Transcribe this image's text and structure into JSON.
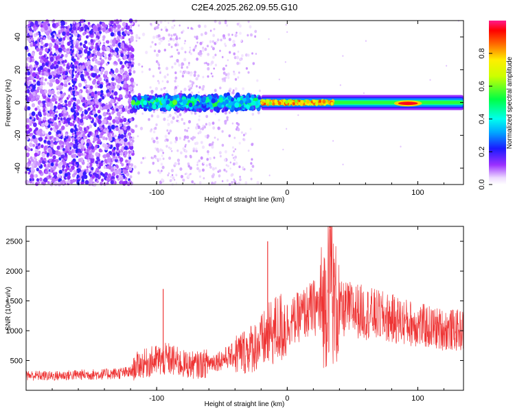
{
  "title": "C2E4.2025.262.09.55.G10",
  "chart_data": [
    {
      "type": "heatmap",
      "xlabel": "Height of straight line (km)",
      "ylabel": "Frequency (Hz)",
      "xlim": [
        -200,
        135
      ],
      "ylim": [
        -50,
        50
      ],
      "x_ticks": [
        -100,
        0,
        100
      ],
      "y_ticks": [
        -40,
        -20,
        0,
        20,
        40
      ],
      "colorbar": {
        "label": "Normalized spectral amplitude",
        "range": [
          0,
          1
        ],
        "ticks": [
          0.0,
          0.2,
          0.4,
          0.6,
          0.8
        ]
      },
      "features": [
        {
          "name": "broadband noise",
          "x_range": [
            -200,
            -118
          ],
          "freq_range": [
            -50,
            50
          ],
          "amplitude": 0.15
        },
        {
          "name": "scattered noise",
          "x_range": [
            -118,
            -20
          ],
          "freq_range": [
            -50,
            50
          ],
          "amplitude": 0.05
        },
        {
          "name": "signal band",
          "x_range": [
            -118,
            -20
          ],
          "freq_range": [
            -5,
            5
          ],
          "amplitude": 0.45
        },
        {
          "name": "signal band",
          "x_range": [
            -20,
            135
          ],
          "freq_range": [
            -3,
            3
          ],
          "amplitude": 0.55
        },
        {
          "name": "signal peak",
          "x_range": [
            85,
            100
          ],
          "freq_range": [
            -1.5,
            0.5
          ],
          "amplitude": 0.95
        }
      ]
    },
    {
      "type": "line",
      "xlabel": "Height of straight line (km)",
      "ylabel": "SNR (10 * v/v)",
      "xlim": [
        -200,
        135
      ],
      "ylim": [
        0,
        2750
      ],
      "x_ticks": [
        -100,
        0,
        100
      ],
      "y_ticks": [
        500,
        1000,
        1500,
        2000,
        2500
      ],
      "color": "#ee3333",
      "series": [
        {
          "name": "SNR",
          "x": [
            -200,
            -180,
            -160,
            -140,
            -120,
            -115,
            -100,
            -90,
            -80,
            -70,
            -60,
            -50,
            -40,
            -30,
            -20,
            -15,
            -10,
            0,
            10,
            20,
            30,
            32,
            33,
            35,
            40,
            50,
            60,
            70,
            80,
            90,
            100,
            110,
            120,
            135
          ],
          "values": [
            250,
            240,
            260,
            270,
            300,
            420,
            500,
            520,
            440,
            420,
            460,
            520,
            600,
            680,
            800,
            900,
            1000,
            1100,
            1250,
            1380,
            1450,
            2300,
            2700,
            1500,
            1350,
            1360,
            1300,
            1250,
            1200,
            1150,
            1100,
            1050,
            1020,
            1000
          ]
        }
      ],
      "spikes": [
        {
          "x": -95,
          "value": 1700
        },
        {
          "x": -15,
          "value": 2500
        },
        {
          "x": 33,
          "value": 2700
        }
      ]
    }
  ]
}
